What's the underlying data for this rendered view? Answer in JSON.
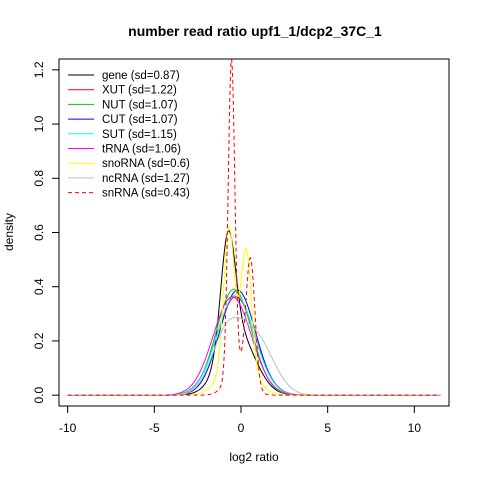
{
  "chart_data": {
    "type": "line",
    "title": "number read ratio upf1_1/dcp2_37C_1",
    "xlabel": "log2 ratio",
    "ylabel": "density",
    "xlim": [
      -10.5,
      12.0
    ],
    "ylim": [
      -0.04,
      1.24
    ],
    "xticks": [
      -10,
      -5,
      0,
      5,
      10
    ],
    "yticks": [
      0.0,
      0.2,
      0.4,
      0.6,
      0.8,
      1.0,
      1.2
    ],
    "xtick_labels": [
      "-10",
      "-5",
      "0",
      "5",
      "10"
    ],
    "ytick_labels": [
      "0.0",
      "0.2",
      "0.4",
      "0.6",
      "0.8",
      "1.0",
      "1.2"
    ],
    "legend_position": "top-left",
    "grid": false,
    "support": [
      -10.0,
      11.5
    ],
    "series": [
      {
        "name": "gene (sd=0.87)",
        "color": "#000000",
        "dash": "solid",
        "components": [
          {
            "w": 0.43,
            "mu": -0.75,
            "sigma": 0.42
          },
          {
            "w": 0.57,
            "mu": -0.2,
            "sigma": 1.0
          }
        ]
      },
      {
        "name": "XUT (sd=1.22)",
        "color": "#ff0000",
        "dash": "solid",
        "components": [
          {
            "w": 1.0,
            "mu": -0.3,
            "sigma": 1.1
          }
        ]
      },
      {
        "name": "NUT (sd=1.07)",
        "color": "#00cd00",
        "dash": "solid",
        "components": [
          {
            "w": 1.0,
            "mu": -0.4,
            "sigma": 1.02
          }
        ]
      },
      {
        "name": "CUT (sd=1.07)",
        "color": "#0000ff",
        "dash": "solid",
        "components": [
          {
            "w": 1.0,
            "mu": -0.2,
            "sigma": 1.03
          }
        ]
      },
      {
        "name": "SUT (sd=1.15)",
        "color": "#00ffff",
        "dash": "solid",
        "components": [
          {
            "w": 1.0,
            "mu": -0.3,
            "sigma": 1.08
          }
        ]
      },
      {
        "name": "tRNA (sd=1.06)",
        "color": "#ff00ff",
        "dash": "solid",
        "components": [
          {
            "w": 1.0,
            "mu": -0.5,
            "sigma": 1.1
          }
        ]
      },
      {
        "name": "snoRNA (sd=0.6)",
        "color": "#ffff00",
        "dash": "solid",
        "components": [
          {
            "w": 0.38,
            "mu": -0.7,
            "sigma": 0.3
          },
          {
            "w": 0.32,
            "mu": 0.3,
            "sigma": 0.3
          },
          {
            "w": 0.3,
            "mu": -0.2,
            "sigma": 0.9
          }
        ]
      },
      {
        "name": "ncRNA (sd=1.27)",
        "color": "#bebebe",
        "dash": "solid",
        "components": [
          {
            "w": 0.5,
            "mu": -0.8,
            "sigma": 0.9
          },
          {
            "w": 0.5,
            "mu": 0.9,
            "sigma": 1.0
          }
        ]
      },
      {
        "name": "snRNA (sd=0.43)",
        "color": "#ff0000",
        "dash": "dashed",
        "components": [
          {
            "w": 0.55,
            "mu": -0.55,
            "sigma": 0.19
          },
          {
            "w": 0.3,
            "mu": 0.55,
            "sigma": 0.26
          },
          {
            "w": 0.15,
            "mu": -0.2,
            "sigma": 0.6
          }
        ]
      }
    ]
  }
}
